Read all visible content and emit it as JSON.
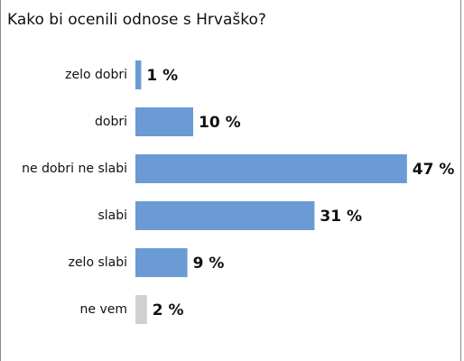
{
  "chart_data": {
    "type": "bar",
    "orientation": "horizontal",
    "title": "Kako bi ocenili odnose s Hrvaško?",
    "categories": [
      "zelo dobri",
      "dobri",
      "ne dobri ne slabi",
      "slabi",
      "zelo slabi",
      "ne vem"
    ],
    "values": [
      1,
      10,
      47,
      31,
      9,
      2
    ],
    "value_labels": [
      "1 %",
      "10 %",
      "47 %",
      "31 %",
      "9 %",
      "2 %"
    ],
    "colors": [
      "#6a9bd4",
      "#6a9bd4",
      "#6a9bd4",
      "#6a9bd4",
      "#6a9bd4",
      "#d0d0d0"
    ]
  }
}
